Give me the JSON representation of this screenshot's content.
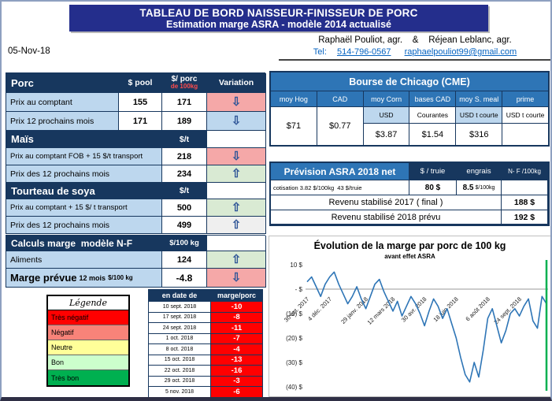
{
  "header": {
    "title_line1": "TABLEAU DE BORD NAISSEUR-FINISSEUR DE PORC",
    "title_line2": "Estimation marge ASRA - modèle 2014 actualisé",
    "date": "05-Nov-18",
    "authors": "Raphaël Pouliot, agr.    &    Réjean Leblanc, agr.",
    "tel_label": "Tel:",
    "phone": "514-796-0567",
    "email": "raphaelpouliot99@gmail.com"
  },
  "colors": {
    "banner_bg": "#242E8C",
    "navy_header": "#17375E",
    "medium_blue": "#2E75B6",
    "light_blue": "#BDD7EE",
    "negative_red": "#FF0000",
    "arrow_blue": "#2F5597",
    "today_line_green": "#00B050"
  },
  "porc_table": {
    "title": "Porc",
    "col_pool": "$ pool",
    "col_unit_line1": "$/ porc",
    "col_unit_line2": "de 100kg",
    "col_variation": "Variation",
    "rows": [
      {
        "label": "Prix au comptant",
        "pool": "155",
        "value": "171",
        "arrow": "⇩",
        "arrow_bg": "#F5A8A8"
      },
      {
        "label": "Prix 12 prochains mois",
        "pool": "171",
        "value": "189",
        "arrow": "⇩",
        "arrow_bg": "#BDD7EE"
      }
    ]
  },
  "mais_table": {
    "title": "Maïs",
    "unit": "$/t",
    "rows": [
      {
        "label": "Prix au comptant FOB + 15 $/t transport",
        "value": "218",
        "arrow": "⇩",
        "arrow_bg": "#F5A8A8"
      },
      {
        "label": "Prix des 12 prochains mois",
        "value": "234",
        "arrow": "⇧",
        "arrow_bg": "#D9EAD3"
      }
    ]
  },
  "tourteau_table": {
    "title": "Tourteau de soya",
    "unit": "$/t",
    "rows": [
      {
        "label": "Prix au comptant + 15 $/ t transport",
        "value": "500",
        "arrow": "⇧",
        "arrow_bg": "#D9EAD3"
      },
      {
        "label": "Prix des 12 prochains mois",
        "value": "499",
        "arrow": "⇧",
        "arrow_bg": "#EFEFEF"
      }
    ]
  },
  "calculs_table": {
    "title": "Calculs marge  modèle N-F",
    "unit": "$/100 kg",
    "aliments": {
      "label": "Aliments",
      "value": "124",
      "arrow": "⇧",
      "arrow_bg": "#D9EAD3"
    },
    "marge": {
      "label": "Marge prévue",
      "label_suffix": "12 mois",
      "label_unit": "$/100 kg",
      "value": "-4.8",
      "arrow": "⇩",
      "arrow_bg": "#F5A8A8"
    }
  },
  "legend": {
    "title": "Légende",
    "items": [
      {
        "label": "Très négatif",
        "color": "#FF0000"
      },
      {
        "label": "Négatif",
        "color": "#F88379"
      },
      {
        "label": "Neutre",
        "color": "#FFFF99"
      },
      {
        "label": "Bon",
        "color": "#CCFFCC"
      },
      {
        "label": "Très bon",
        "color": "#00B050"
      }
    ]
  },
  "marge_history": {
    "col_date": "en date de",
    "col_value": "marge/porc",
    "value_bg": "#FF0000",
    "rows": [
      {
        "date": "10 sept. 2018",
        "value": "-10"
      },
      {
        "date": "17 sept. 2018",
        "value": "-8"
      },
      {
        "date": "24 sept. 2018",
        "value": "-11"
      },
      {
        "date": "1 oct. 2018",
        "value": "-7"
      },
      {
        "date": "8 oct. 2018",
        "value": "-4"
      },
      {
        "date": "15 oct. 2018",
        "value": "-13"
      },
      {
        "date": "22 oct. 2018",
        "value": "-16"
      },
      {
        "date": "29 oct. 2018",
        "value": "-3"
      },
      {
        "date": "5 nov. 2018",
        "value": "-6"
      }
    ]
  },
  "cme_table": {
    "title": "Bourse de Chicago (CME)",
    "columns": [
      {
        "header": "moy Hog",
        "sub": "",
        "sub_bg": "#FFFFFF",
        "value": "$71"
      },
      {
        "header": "CAD",
        "sub": "",
        "sub_bg": "#FFFFFF",
        "value": "$0.77"
      },
      {
        "header": "moy Corn",
        "sub": "USD",
        "sub_bg": "#BDD7EE",
        "value": "$3.87"
      },
      {
        "header": "bases CAD",
        "sub": "Courantes",
        "sub_bg": "#FFFFFF",
        "value": "$1.54"
      },
      {
        "header": "moy S. meal",
        "sub": "USD t courte",
        "sub_bg": "#BDD7EE",
        "value": "$316"
      },
      {
        "header": "prime",
        "sub": "USD t courte",
        "sub_bg": "#FFFFFF",
        "value": ""
      }
    ]
  },
  "asra_table": {
    "title": "Prévision ASRA 2018 net",
    "col_truie": "$ / truie",
    "col_engrais": "engrais",
    "col_nf": "N- F /100kg",
    "cotisation": "cotisation 3.82 $/100kg  43 $/truie",
    "truie_value": "80 $",
    "engrais_value": "8.5",
    "engrais_unit": "$/100kg",
    "rows": [
      {
        "label": "Revenu stabilisé 2017 ( final )",
        "value": "188 $"
      },
      {
        "label": "Revenu stabilisé 2018 prévu",
        "value": "192 $"
      }
    ]
  },
  "chart_data": {
    "type": "line",
    "title": "Évolution de la marge par porc de 100 kg",
    "subtitle": "avant effet ASRA",
    "xlabel": "",
    "ylabel": "",
    "ylim": [
      -40,
      10
    ],
    "grid": false,
    "y_tick_values": [
      10,
      0,
      -10,
      -20,
      -30,
      -40
    ],
    "y_tick_labels": [
      "10 $",
      "- $",
      "(10) $",
      "(20) $",
      "(30) $",
      "(40) $"
    ],
    "x_labels": [
      "30 oct. 2017",
      "4 déc. 2017",
      "29 janv. 2018",
      "12 mars 2018",
      "30 avr. 2018",
      "18 juin 2018",
      "6 août 2018",
      "24 sept. 2018"
    ],
    "x_label_indices": [
      0,
      5,
      13,
      19,
      26,
      33,
      40,
      47
    ],
    "line_color": "#2E75B6",
    "today_line_color": "#00B050",
    "values": [
      3,
      5,
      1,
      -3,
      2,
      5,
      7,
      2,
      -2,
      -6,
      -3,
      1,
      -4,
      -8,
      -3,
      2,
      4,
      -1,
      -5,
      -9,
      -5,
      -11,
      -7,
      -3,
      -6,
      -10,
      -15,
      -9,
      -4,
      -7,
      -12,
      -8,
      -14,
      -20,
      -28,
      -35,
      -38,
      -30,
      -36,
      -25,
      -12,
      -8,
      -15,
      -22,
      -17,
      -10,
      -8,
      -11,
      -7,
      -4,
      -13,
      -16,
      -3,
      -6
    ]
  }
}
